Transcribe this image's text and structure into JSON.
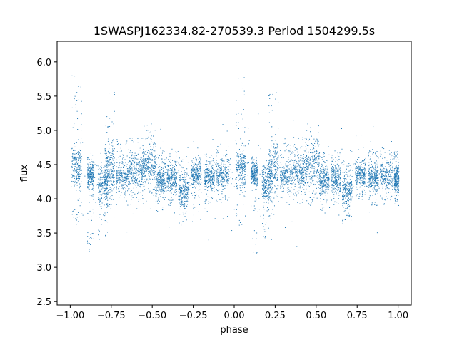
{
  "chart_data": {
    "type": "scatter",
    "title": "1SWASPJ162334.82-270539.3 Period 1504299.5s",
    "xlabel": "phase",
    "ylabel": "flux",
    "xlim": [
      -1.08,
      1.08
    ],
    "ylim": [
      2.45,
      6.3
    ],
    "xticks": [
      -1.0,
      -0.75,
      -0.5,
      -0.25,
      0.0,
      0.25,
      0.5,
      0.75,
      1.0
    ],
    "xtick_labels": [
      "−1.00",
      "−0.75",
      "−0.50",
      "−0.25",
      "0.00",
      "0.25",
      "0.50",
      "0.75",
      "1.00"
    ],
    "yticks": [
      2.5,
      3.0,
      3.5,
      4.0,
      4.5,
      5.0,
      5.5,
      6.0
    ],
    "ytick_labels": [
      "2.5",
      "3.0",
      "3.5",
      "4.0",
      "4.5",
      "5.0",
      "5.5",
      "6.0"
    ],
    "grid": false,
    "legend": "none",
    "marker_color": "#1f77b4",
    "series": [
      {
        "values_note_omitted": "",
        "clusters": [
          {
            "x": -0.96,
            "y": 4.45,
            "spread": 0.28,
            "peak": 5.8,
            "dip": 3.6,
            "w": 0.03
          },
          {
            "x": -0.875,
            "y": 4.35,
            "spread": 0.15,
            "peak": 4.6,
            "dip": 3.2,
            "w": 0.02
          },
          {
            "x": -0.8,
            "y": 4.2,
            "spread": 0.3,
            "peak": 4.5,
            "dip": 3.4,
            "w": 0.03
          },
          {
            "x": -0.76,
            "y": 4.45,
            "spread": 0.35,
            "peak": 5.6,
            "dip": 3.8,
            "w": 0.03
          },
          {
            "x": -0.68,
            "y": 4.35,
            "spread": 0.2,
            "peak": 4.9,
            "dip": 4.0,
            "w": 0.04
          },
          {
            "x": -0.6,
            "y": 4.4,
            "spread": 0.25,
            "peak": 4.9,
            "dip": 3.9,
            "w": 0.04
          },
          {
            "x": -0.52,
            "y": 4.5,
            "spread": 0.3,
            "peak": 5.1,
            "dip": 3.9,
            "w": 0.04
          },
          {
            "x": -0.45,
            "y": 4.25,
            "spread": 0.2,
            "peak": 4.7,
            "dip": 3.8,
            "w": 0.03
          },
          {
            "x": -0.38,
            "y": 4.3,
            "spread": 0.2,
            "peak": 4.7,
            "dip": 3.9,
            "w": 0.03
          },
          {
            "x": -0.31,
            "y": 4.1,
            "spread": 0.25,
            "peak": 4.6,
            "dip": 3.6,
            "w": 0.03
          },
          {
            "x": -0.23,
            "y": 4.35,
            "spread": 0.15,
            "peak": 4.6,
            "dip": 4.0,
            "w": 0.03
          },
          {
            "x": -0.15,
            "y": 4.3,
            "spread": 0.18,
            "peak": 4.7,
            "dip": 3.9,
            "w": 0.03
          },
          {
            "x": -0.07,
            "y": 4.35,
            "spread": 0.2,
            "peak": 4.8,
            "dip": 3.9,
            "w": 0.04
          },
          {
            "x": 0.04,
            "y": 4.45,
            "spread": 0.28,
            "peak": 5.8,
            "dip": 3.6,
            "w": 0.03
          },
          {
            "x": 0.125,
            "y": 4.35,
            "spread": 0.15,
            "peak": 4.6,
            "dip": 3.2,
            "w": 0.02
          },
          {
            "x": 0.2,
            "y": 4.2,
            "spread": 0.3,
            "peak": 4.5,
            "dip": 3.4,
            "w": 0.03
          },
          {
            "x": 0.24,
            "y": 4.45,
            "spread": 0.35,
            "peak": 5.6,
            "dip": 3.8,
            "w": 0.03
          },
          {
            "x": 0.32,
            "y": 4.35,
            "spread": 0.2,
            "peak": 4.9,
            "dip": 4.0,
            "w": 0.04
          },
          {
            "x": 0.4,
            "y": 4.4,
            "spread": 0.25,
            "peak": 4.9,
            "dip": 3.9,
            "w": 0.04
          },
          {
            "x": 0.48,
            "y": 4.5,
            "spread": 0.3,
            "peak": 5.1,
            "dip": 3.9,
            "w": 0.04
          },
          {
            "x": 0.55,
            "y": 4.25,
            "spread": 0.2,
            "peak": 4.7,
            "dip": 3.8,
            "w": 0.03
          },
          {
            "x": 0.62,
            "y": 4.3,
            "spread": 0.2,
            "peak": 4.7,
            "dip": 3.9,
            "w": 0.03
          },
          {
            "x": 0.69,
            "y": 4.1,
            "spread": 0.25,
            "peak": 4.6,
            "dip": 3.6,
            "w": 0.03
          },
          {
            "x": 0.77,
            "y": 4.35,
            "spread": 0.15,
            "peak": 4.6,
            "dip": 4.0,
            "w": 0.03
          },
          {
            "x": 0.85,
            "y": 4.3,
            "spread": 0.18,
            "peak": 4.7,
            "dip": 3.9,
            "w": 0.03
          },
          {
            "x": 0.93,
            "y": 4.35,
            "spread": 0.2,
            "peak": 4.8,
            "dip": 3.9,
            "w": 0.04
          },
          {
            "x": 0.99,
            "y": 4.3,
            "spread": 0.2,
            "peak": 4.7,
            "dip": 3.9,
            "w": 0.015
          }
        ]
      }
    ]
  }
}
